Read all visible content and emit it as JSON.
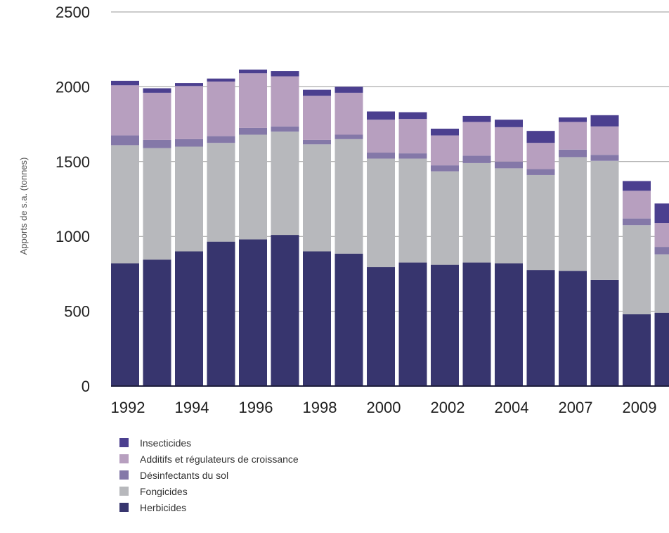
{
  "chart_data": {
    "type": "bar",
    "stacked": true,
    "title": "",
    "xlabel": "",
    "ylabel": "Apports de s.a. (tonnes)",
    "ylim": [
      0,
      2500
    ],
    "yticks": [
      0,
      500,
      1000,
      1500,
      2000,
      2500
    ],
    "grid": true,
    "legend_position": "bottom-left",
    "categories": [
      "1992",
      "1993",
      "1994",
      "1995",
      "1996",
      "1997",
      "1998",
      "1999",
      "2000",
      "2001",
      "2002",
      "2003",
      "2004",
      "2005",
      "2007",
      "2008",
      "2009",
      "2010"
    ],
    "xtick_labels": [
      "1992",
      "1994",
      "1996",
      "1998",
      "2000",
      "2002",
      "2004",
      "2007",
      "2009"
    ],
    "series": [
      {
        "name": "Herbicides",
        "color": "#37356e",
        "values": [
          820,
          845,
          900,
          965,
          980,
          1010,
          900,
          885,
          795,
          825,
          810,
          825,
          820,
          775,
          770,
          710,
          480,
          490
        ]
      },
      {
        "name": "Fongicides",
        "color": "#b7b8bc",
        "values": [
          790,
          745,
          700,
          660,
          700,
          690,
          715,
          765,
          725,
          695,
          625,
          665,
          635,
          635,
          760,
          795,
          595,
          390
        ]
      },
      {
        "name": "Désinfectants du sol",
        "color": "#8478a8",
        "values": [
          65,
          55,
          50,
          45,
          45,
          35,
          30,
          30,
          40,
          35,
          40,
          50,
          45,
          40,
          50,
          40,
          45,
          50
        ]
      },
      {
        "name": "Additifs et régulateurs de croissance",
        "color": "#b79fbf",
        "values": [
          335,
          315,
          355,
          365,
          365,
          335,
          295,
          280,
          220,
          230,
          200,
          225,
          230,
          175,
          185,
          190,
          185,
          160
        ]
      },
      {
        "name": "Insecticides",
        "color": "#4b3f8f",
        "values": [
          30,
          30,
          20,
          20,
          25,
          35,
          40,
          40,
          55,
          45,
          45,
          40,
          50,
          80,
          30,
          75,
          65,
          130
        ]
      }
    ],
    "legend_order": [
      "Insecticides",
      "Additifs et régulateurs de croissance",
      "Désinfectants du sol",
      "Fongicides",
      "Herbicides"
    ]
  }
}
